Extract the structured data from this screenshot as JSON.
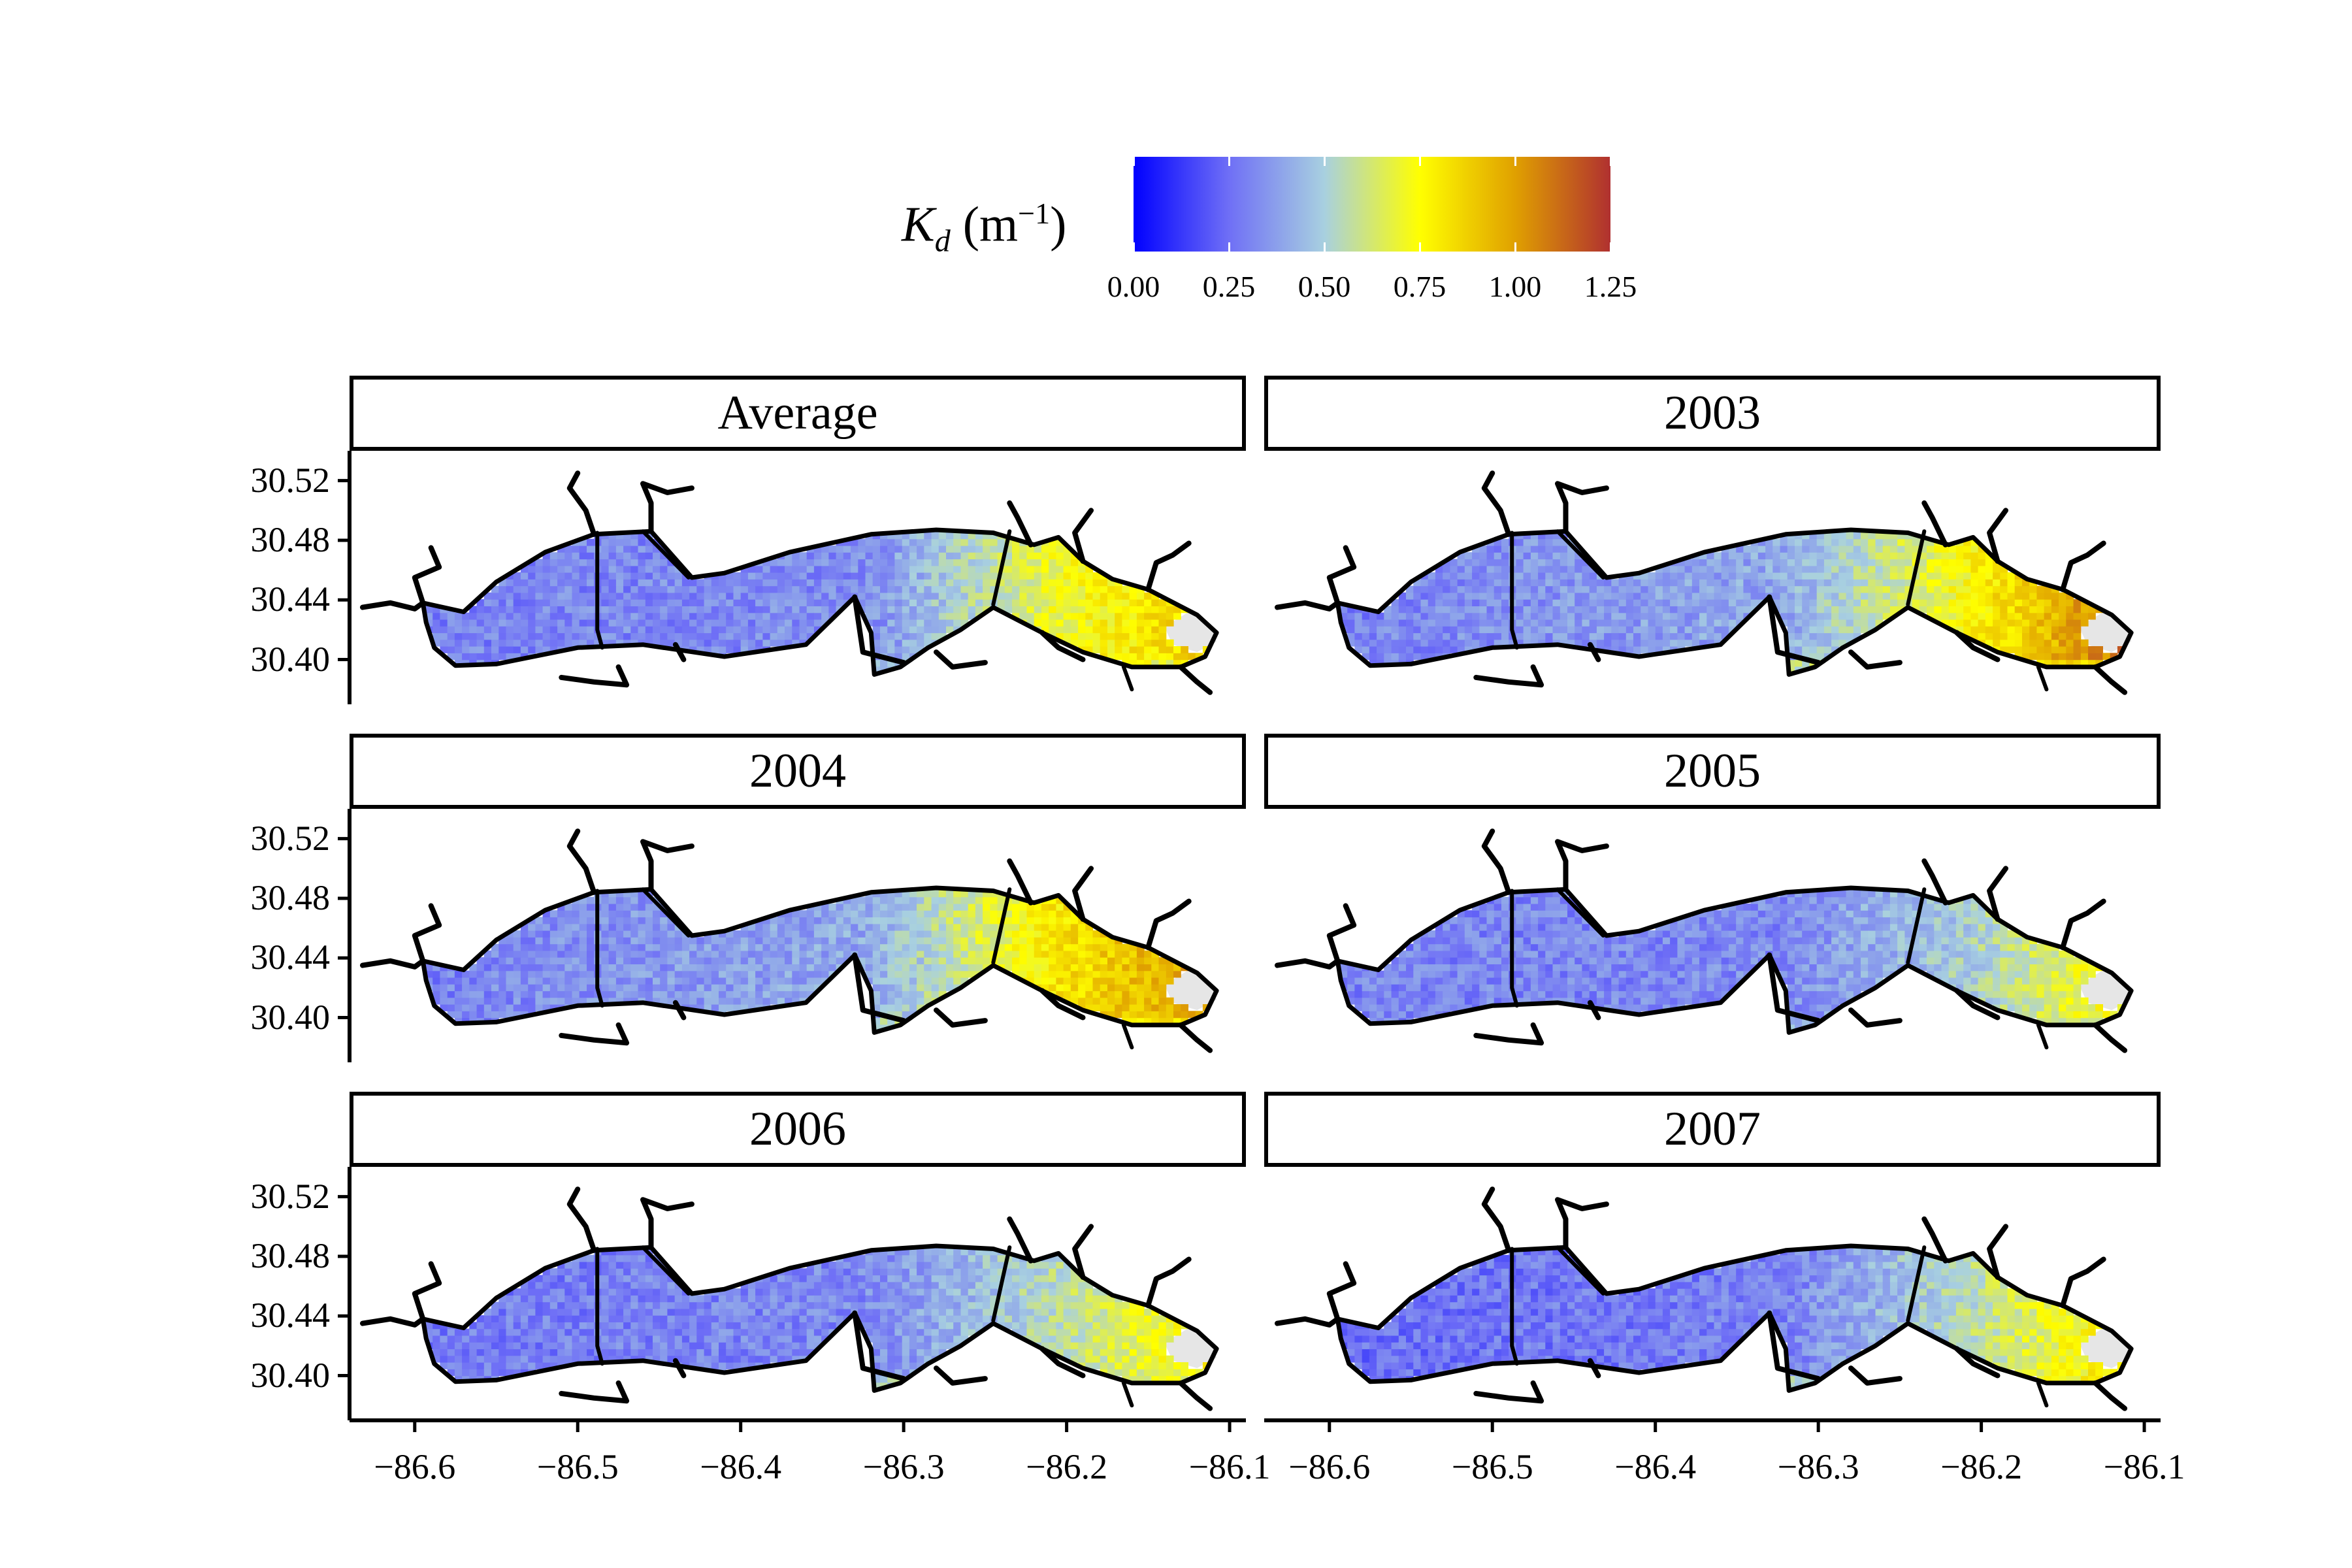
{
  "legend": {
    "symbol": "K",
    "subscript": "d",
    "unit_base": "(m",
    "unit_exp": "−1",
    "unit_close": ")",
    "ticks": [
      "0.00",
      "0.25",
      "0.50",
      "0.75",
      "1.00",
      "1.25"
    ],
    "range": [
      0,
      1.25
    ],
    "colors": [
      "#0000ff",
      "#6f6ff6",
      "#a8d0e0",
      "#ffff00",
      "#e0a000",
      "#b03030"
    ]
  },
  "chart_data": {
    "type": "heatmap",
    "variable": "K_d (m^-1)",
    "facets": [
      "Average",
      "2003",
      "2004",
      "2005",
      "2006",
      "2007"
    ],
    "x_ticks": [
      "−86.6",
      "−86.5",
      "−86.4",
      "−86.3",
      "−86.2",
      "−86.1"
    ],
    "x_tick_values": [
      -86.6,
      -86.5,
      -86.4,
      -86.3,
      -86.2,
      -86.1
    ],
    "y_ticks": [
      "30.52",
      "30.48",
      "30.44",
      "30.40"
    ],
    "y_tick_values": [
      30.52,
      30.48,
      30.44,
      30.4
    ],
    "xlim": [
      -86.64,
      -86.09
    ],
    "ylim": [
      30.37,
      30.54
    ],
    "facet_regions": [
      {
        "name": "Average",
        "west": 0.3,
        "middle": 0.33,
        "east": 0.7,
        "east_end": 0.9,
        "south_edge": 0.6
      },
      {
        "name": "2003",
        "west": 0.3,
        "middle": 0.4,
        "east": 0.75,
        "east_end": 1.15,
        "south_edge": 0.7
      },
      {
        "name": "2004",
        "west": 0.3,
        "middle": 0.4,
        "east": 0.8,
        "east_end": 1.05,
        "south_edge": 0.65
      },
      {
        "name": "2005",
        "west": 0.3,
        "middle": 0.32,
        "east": 0.5,
        "east_end": 0.8,
        "south_edge": 0.55
      },
      {
        "name": "2006",
        "west": 0.28,
        "middle": 0.32,
        "east": 0.55,
        "east_end": 0.8,
        "south_edge": 0.65
      },
      {
        "name": "2007",
        "west": 0.25,
        "middle": 0.3,
        "east": 0.55,
        "east_end": 0.85,
        "south_edge": 0.75
      }
    ]
  }
}
